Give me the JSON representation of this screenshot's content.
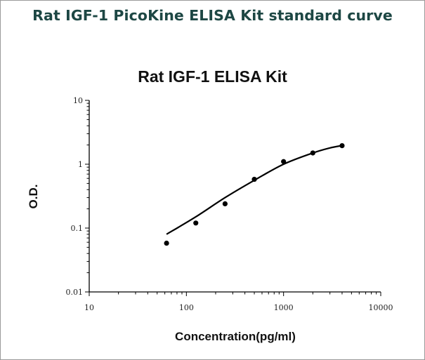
{
  "header": {
    "title": "Rat IGF-1 PicoKine ELISA Kit standard curve"
  },
  "chart_data": {
    "type": "scatter",
    "title": "Rat IGF-1 ELISA Kit",
    "xlabel": "Concentration(pg/ml)",
    "ylabel": "O.D.",
    "x_scale": "log",
    "y_scale": "log",
    "xlim": [
      10,
      10000
    ],
    "ylim": [
      0.01,
      10
    ],
    "x_ticks": [
      10,
      100,
      1000,
      10000
    ],
    "x_tick_labels": [
      "10",
      "100",
      "1000",
      "10000"
    ],
    "y_ticks": [
      0.01,
      0.1,
      1,
      10
    ],
    "y_tick_labels": [
      "0.01",
      "0.1",
      "1",
      "10"
    ],
    "grid": false,
    "series": [
      {
        "points": [
          {
            "x": 62.5,
            "y": 0.058
          },
          {
            "x": 125,
            "y": 0.12
          },
          {
            "x": 250,
            "y": 0.24
          },
          {
            "x": 500,
            "y": 0.58
          },
          {
            "x": 1000,
            "y": 1.1
          },
          {
            "x": 2000,
            "y": 1.5
          },
          {
            "x": 4000,
            "y": 1.95
          }
        ],
        "fit_curve": [
          {
            "x": 62.5,
            "y": 0.08
          },
          {
            "x": 125,
            "y": 0.15
          },
          {
            "x": 250,
            "y": 0.3
          },
          {
            "x": 500,
            "y": 0.56
          },
          {
            "x": 1000,
            "y": 1.0
          },
          {
            "x": 2000,
            "y": 1.5
          },
          {
            "x": 3000,
            "y": 1.8
          },
          {
            "x": 4000,
            "y": 1.96
          }
        ],
        "color": "#000000"
      }
    ]
  }
}
